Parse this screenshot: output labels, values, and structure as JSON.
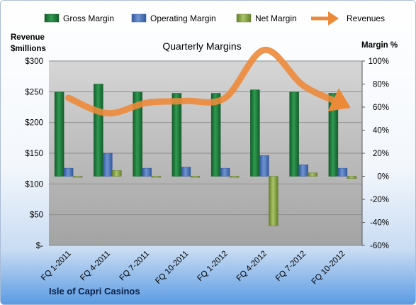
{
  "chart_data": {
    "type": "bar",
    "title": "Quarterly Margins",
    "categories": [
      "FQ 1-2011",
      "FQ 4-2011",
      "FQ 7-2011",
      "FQ 10-2011",
      "FQ 1-2012",
      "FQ 4-2012",
      "FQ 7-2012",
      "FQ 10-2012"
    ],
    "series": [
      {
        "name": "Gross Margin",
        "axis": "right",
        "unit": "%",
        "color": "#1e7a3c",
        "values": [
          73,
          80,
          73,
          72,
          72,
          75,
          73,
          72
        ]
      },
      {
        "name": "Operating Margin",
        "axis": "right",
        "unit": "%",
        "color": "#4f78bd",
        "values": [
          7,
          20,
          7,
          8,
          7,
          18,
          10,
          7
        ]
      },
      {
        "name": "Net Margin",
        "axis": "right",
        "unit": "%",
        "color": "#8aa84a",
        "values": [
          -1,
          5,
          -1,
          -1,
          -1,
          -43,
          3,
          -2
        ]
      },
      {
        "name": "Revenues",
        "axis": "left",
        "unit": "$ millions",
        "type": "line",
        "color": "#ed8a3a",
        "values": [
          240,
          215,
          232,
          235,
          240,
          318,
          260,
          230
        ]
      }
    ],
    "ylabel_left": "Revenue $millions",
    "ylabel_right": "Margin %",
    "ylim_left": [
      0,
      300
    ],
    "ylim_right": [
      -60,
      100
    ],
    "left_ticks": [
      "$300",
      "$250",
      "$200",
      "$150",
      "$100",
      "$50",
      "$-"
    ],
    "right_ticks": [
      "100%",
      "80%",
      "60%",
      "40%",
      "20%",
      "0%",
      "-20%",
      "-40%",
      "-60%"
    ],
    "legend_position": "top",
    "grid": true
  },
  "labels": {
    "ylabel_left_line1": "Revenue",
    "ylabel_left_line2": "$millions",
    "ylabel_right": "Margin %",
    "company": "Isle of Capri Casinos"
  },
  "colors": {
    "plot_top": "#d3d3d3",
    "plot_bottom": "#a6a6a6",
    "grid": "#8c8c8c",
    "background_bottom": "#5b9be3"
  }
}
